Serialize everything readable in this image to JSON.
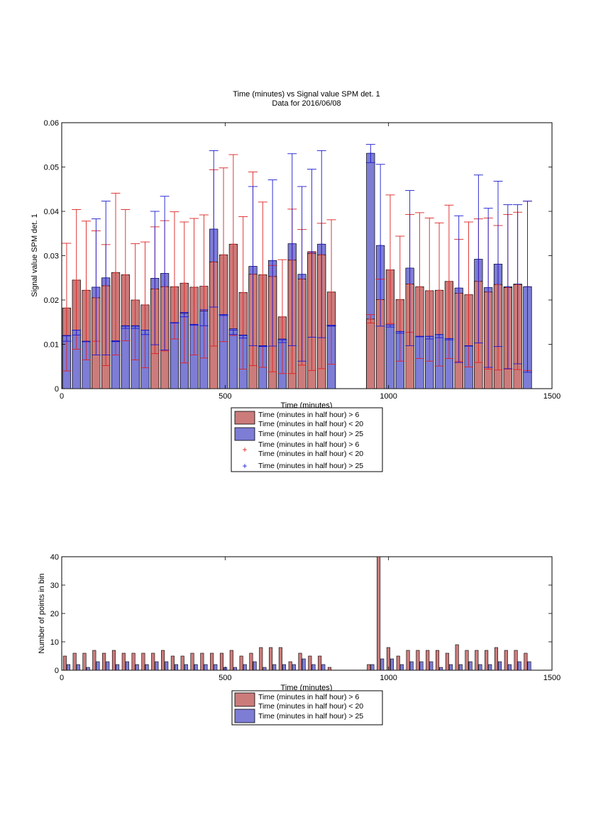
{
  "chart_data": [
    {
      "type": "bar",
      "title": "Time (minutes) vs Signal value SPM det. 1",
      "subtitle": "Data for 2016/06/08",
      "xlabel": "Time (minutes)",
      "ylabel": "Signal value SPM det. 1",
      "xlim": [
        0,
        1500
      ],
      "ylim": [
        0,
        0.06
      ],
      "xticks": [
        "0",
        "500",
        "1000",
        "1500"
      ],
      "yticks": [
        "0",
        "0.01",
        "0.02",
        "0.03",
        "0.04",
        "0.05",
        "0.06"
      ],
      "legend": [
        "Time (minutes in half hour) > 6\nTime (minutes in half hour) < 20",
        "Time (minutes in half hour) > 25",
        "Time (minutes in half hour) > 6\nTime (minutes in half hour) < 20",
        "Time (minutes in half hour) > 25"
      ],
      "legend_position": "below",
      "x": [
        15,
        45,
        75,
        105,
        135,
        165,
        195,
        225,
        255,
        285,
        315,
        345,
        375,
        405,
        435,
        465,
        495,
        525,
        555,
        585,
        615,
        645,
        675,
        705,
        735,
        765,
        795,
        825,
        945,
        975,
        1005,
        1035,
        1065,
        1095,
        1125,
        1155,
        1185,
        1215,
        1245,
        1275,
        1305,
        1335,
        1365,
        1395,
        1425
      ],
      "series": [
        {
          "values": [
            0.0182,
            0.0245,
            0.0222,
            0.0205,
            0.0232,
            0.0262,
            0.0257,
            0.02,
            0.0189,
            0.0225,
            0.023,
            0.023,
            0.0238,
            0.0229,
            0.0231,
            0.0286,
            0.0302,
            0.0326,
            0.0217,
            0.0258,
            0.0257,
            0.0253,
            0.0162,
            0.029,
            0.0247,
            0.0305,
            0.0302,
            0.0218,
            0.0157,
            0.0201,
            0.0268,
            0.0201,
            0.0236,
            0.023,
            0.0221,
            0.0222,
            0.0242,
            0.0215,
            0.0212,
            0.0242,
            0.0218,
            0.0235,
            0.0228,
            0.0235,
            0.023
          ],
          "err_low": [
            0.004,
            0.0089,
            0.0065,
            0.0107,
            0.0052,
            0.0076,
            0.0108,
            0.0065,
            0.0047,
            0.0079,
            0.0085,
            0.0112,
            0.0058,
            0.0076,
            0.0069,
            0.0096,
            0.0106,
            0.012,
            0.0044,
            0.0052,
            0.0048,
            0.0038,
            0.0034,
            0.0034,
            0.0053,
            0.0041,
            0.0045,
            0.0055,
            0.0148,
            0.0247,
            0.0147,
            0.0062,
            0.0127,
            0.0068,
            0.0062,
            0.0051,
            0.0068,
            0.0061,
            0.0049,
            0.0059,
            0.0044,
            0.0042,
            0.0044,
            0.0043,
            0.0041
          ],
          "err_high": [
            0.0328,
            0.0404,
            0.0378,
            0.0356,
            0.0325,
            0.0441,
            0.0404,
            0.0327,
            0.0331,
            0.0365,
            0.0379,
            0.0399,
            0.0376,
            0.0384,
            0.0392,
            0.0494,
            0.0498,
            0.0528,
            0.0388,
            0.0489,
            0.0421,
            0.0278,
            0.0291,
            0.0405,
            0.0359,
            0.0308,
            0.0373,
            0.0381,
            0.0167,
            0.0247,
            0.0437,
            0.0344,
            0.0393,
            0.0397,
            0.0385,
            0.0374,
            0.0414,
            0.0337,
            0.0376,
            0.0383,
            0.0385,
            0.0368,
            0.0393,
            0.0398,
            0.0423
          ]
        },
        {
          "values": [
            0.012,
            0.0132,
            0.0107,
            0.0229,
            0.025,
            0.0107,
            0.0142,
            0.0142,
            0.0132,
            0.0249,
            0.026,
            0.0149,
            0.017,
            0.0145,
            0.0175,
            0.036,
            0.0167,
            0.0135,
            0.0121,
            0.0276,
            0.0097,
            0.0289,
            0.0112,
            0.0327,
            0.0258,
            0.0309,
            0.0326,
            0.0142,
            0.0531,
            0.0323,
            0.0144,
            0.0129,
            0.0272,
            0.0118,
            0.0118,
            0.0122,
            0.0113,
            0.0227,
            0.0097,
            0.0292,
            0.0228,
            0.0281,
            0.023,
            0.0236,
            0.023
          ],
          "err_low": [
            0.0107,
            0.0121,
            0.0106,
            0.0076,
            0.0076,
            0.0108,
            0.0136,
            0.0136,
            0.0122,
            0.0099,
            0.0087,
            0.0148,
            0.0162,
            0.0143,
            0.0142,
            0.0184,
            0.0165,
            0.0122,
            0.0114,
            0.0097,
            0.0095,
            0.0096,
            0.0104,
            0.0097,
            0.0062,
            0.0116,
            0.0115,
            0.0141,
            0.051,
            0.0141,
            0.0139,
            0.0125,
            0.0097,
            0.0117,
            0.0112,
            0.0115,
            0.011,
            0.0059,
            0.0096,
            0.0103,
            0.0048,
            0.0095,
            0.0045,
            0.0056,
            0.0037
          ],
          "err_high": [
            0.0119,
            0.0132,
            0.0106,
            0.0383,
            0.0423,
            0.0106,
            0.0141,
            0.0141,
            0.0132,
            0.04,
            0.0434,
            0.0149,
            0.0172,
            0.0145,
            0.0178,
            0.0537,
            0.0167,
            0.0132,
            0.012,
            0.0456,
            0.0096,
            0.0471,
            0.011,
            0.053,
            0.0456,
            0.0495,
            0.0537,
            0.0143,
            0.0551,
            0.0506,
            0.0144,
            0.0129,
            0.0447,
            0.0118,
            0.0118,
            0.0122,
            0.0113,
            0.039,
            0.0096,
            0.0482,
            0.0407,
            0.0468,
            0.0415,
            0.0415,
            0.0423
          ]
        }
      ]
    },
    {
      "type": "bar",
      "xlabel": "Time (minutes)",
      "ylabel": "Number of points in bin",
      "xlim": [
        0,
        1500
      ],
      "ylim": [
        0,
        40
      ],
      "xticks": [
        "0",
        "500",
        "1000",
        "1500"
      ],
      "yticks": [
        "0",
        "10",
        "20",
        "30",
        "40"
      ],
      "legend": [
        "Time (minutes in half hour) > 6",
        "Time (minutes in half hour) < 20",
        "Time (minutes in half hour) > 25"
      ],
      "legend_position": "below",
      "x": [
        15,
        45,
        75,
        105,
        135,
        165,
        195,
        225,
        255,
        285,
        315,
        345,
        375,
        405,
        435,
        465,
        495,
        525,
        555,
        585,
        615,
        645,
        675,
        705,
        735,
        765,
        795,
        825,
        945,
        975,
        1005,
        1035,
        1065,
        1095,
        1125,
        1155,
        1185,
        1215,
        1245,
        1275,
        1305,
        1335,
        1365,
        1395,
        1425
      ],
      "series": [
        {
          "values": [
            5,
            6,
            6,
            7,
            6,
            7,
            6,
            6,
            6,
            6,
            7,
            5,
            5,
            6,
            6,
            6,
            6,
            7,
            5,
            6,
            8,
            8,
            8,
            3,
            6,
            5,
            5,
            1,
            2,
            40,
            8,
            5,
            7,
            7,
            7,
            7,
            6,
            9,
            7,
            7,
            7,
            8,
            7,
            7,
            6
          ]
        },
        {
          "values": [
            2,
            2,
            1,
            3,
            3,
            2,
            3,
            2,
            2,
            3,
            3,
            2,
            2,
            2,
            2,
            2,
            1,
            1,
            2,
            3,
            1,
            2,
            2,
            2,
            4,
            2,
            2,
            0,
            2,
            4,
            4,
            2,
            3,
            3,
            3,
            1,
            2,
            2,
            3,
            2,
            2,
            3,
            2,
            3,
            3
          ]
        }
      ]
    }
  ],
  "colors": {
    "red_bar": "#cc7b7b",
    "blue_bar": "#7d7dd6",
    "red_err": "#dd2222",
    "blue_err": "#1a1ad0"
  }
}
